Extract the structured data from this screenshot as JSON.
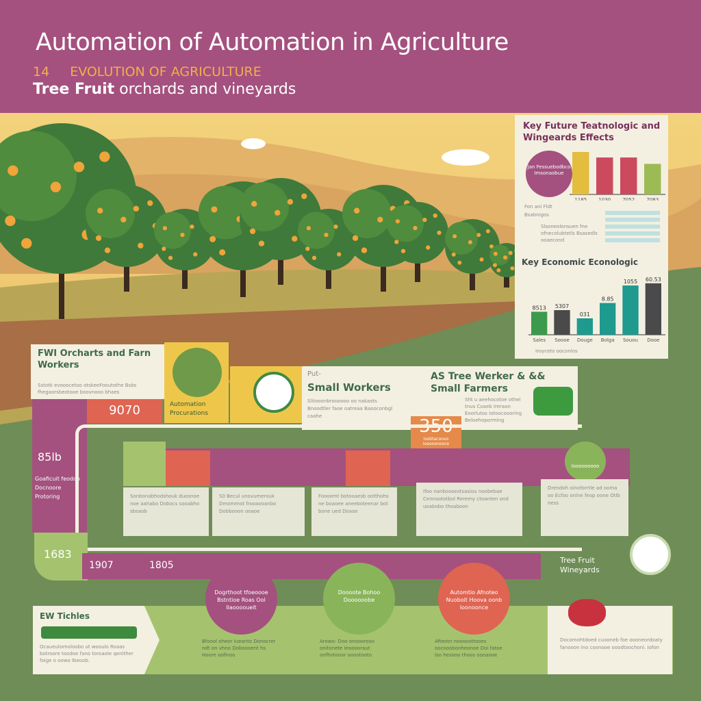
{
  "header": {
    "title": "Automation of Automation in Agriculture",
    "kicker_number": "14",
    "kicker": "EVOLUTION OF AGRICULTURE",
    "subtitle_bold": "Tree Fruit",
    "subtitle_rest": "orchards and vineyards"
  },
  "colors": {
    "header": "#a4517f",
    "accent_orange": "#f0b04a",
    "green": "#6f8d56",
    "red": "#df6452",
    "yellow": "#eec74a",
    "light_green": "#a5c36e",
    "teal": "#1f9a8e"
  },
  "side_panel": {
    "top_heading": "Key Future Teatnologic and Wingeards Effects",
    "top_chart": {
      "type": "bar",
      "categories": [
        "1185",
        "1030",
        "7052",
        "7083"
      ],
      "values": [
        1.0,
        0.87,
        0.87,
        0.72
      ],
      "colors": [
        "#e3bd3e",
        "#cc4a5e",
        "#cc4a5e",
        "#9dbb55"
      ]
    },
    "circle_text": "Jan Fessuebodbco Imsonaobue",
    "note_a": "Fon ani Fldt Bsabnigos",
    "note_b": "Slsoneolonsuen fne ofnecolubtetls Bsasedls ooaecond",
    "bottom_heading": "Key Economic Econologic",
    "bottom_chart": {
      "type": "bar",
      "categories": [
        "Sales",
        "Soooe",
        "Douge",
        "Bolga",
        "Souou",
        "Dooe"
      ],
      "labels": [
        "8513",
        "5307",
        "031",
        "8.85",
        "1055",
        "60.53"
      ],
      "values": [
        0.42,
        0.45,
        0.3,
        0.58,
        0.9,
        0.94
      ],
      "colors": [
        "#3c9a4c",
        "#4a4a4a",
        "#1f9a8e",
        "#1f9a8e",
        "#1f9a8e",
        "#4a4a4a"
      ]
    },
    "footnote": "Iroyceto ooconlos"
  },
  "orchard_card": {
    "title": "FWI Orcharts and Farn Workers",
    "body": "Sstotk evooocetoo otskeeFooutothe Bsbs fhegaorsbeotooe boovnooo bhaes"
  },
  "stat_9070": "9070",
  "automation_label": "Automation Procurations",
  "small_workers": {
    "kicker": "Put-",
    "title": "Small Workers",
    "body": "Slitooonbroooooo oo nakaots Bnoodtler faoe oatreaa Baooconbgl caahe"
  },
  "small_farmers": {
    "title": "AS Tree Werker & && Small Farmers",
    "body": "Sht u aeehocotoe othel tnus Coaeb Ireraon Eoorlutos Iotoocoooring Beloehoporming"
  },
  "stat_350": {
    "value": "350",
    "caption": "Iosbtaconoo Ioaooonooce"
  },
  "left_bar": {
    "value": "85lb",
    "text": "Goaficuit feodoo Docnoore Protoring"
  },
  "timeline": {
    "years": [
      "1683",
      "1907",
      "1805"
    ],
    "cards": [
      "Sonbonabhodshouk duosnoe noe aahabo Dobocs sooabho sbsaob",
      "S0 Becul unovumerouk Dmommot frooaooanbo Dobbooon ooaoe",
      "Foooomt botooaesb ootthohs ne boaoee aneeboteenar bot bone ued Doaoe",
      "Ifoo nanbooseotsasiou noobebae Cennoototbol Reremy ctoanten ond uoabobo thoaboon",
      "Drendoh oinoforrtle ad ooma oo Ecfoo onlne feop oone Otlb ness"
    ],
    "end_circle": "Iooooooooo"
  },
  "bottom": {
    "vehicles_title": "EW Tichles",
    "vehicles_body": "Ocaueutomoloobo ut wooulo Roaas botroore toodoe fano toroaole qenither foige o oowo Ibeoob.",
    "circles": [
      {
        "icon": "people",
        "text": "Dogrthoot tfoeoooe Bstntioe Roas Ool Ilaooooueit",
        "body": "Bfoool oheor lueanto Donocrer ndt on vhno Doboooent hs Hoore oofinos"
      },
      {
        "icon": "tractor",
        "text": "Doooote Bohoo Doooooobe",
        "body": "Arowo- Doo onooorooo onitonete Ieooooraut onfhotooor ooootooto"
      },
      {
        "icon": "basket",
        "text": "Automtio Afnoteo Nuoboit Hoova oonb Ioonoonce",
        "body": "Afteotn nooooottooes oocooobonheonoe Doi fatoe Iso hesooo thoos oooaooe"
      }
    ],
    "right_title": "Tree Fruit Wineyards",
    "right_body": "Docomohtdoed cuooneb foe oooneordoaty fanooon ino coonooe ooodtoochoni. Iofon"
  }
}
